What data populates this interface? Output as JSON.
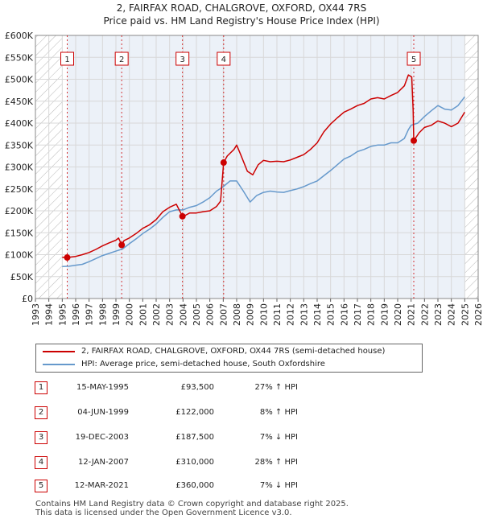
{
  "title_line1": "2, FAIRFAX ROAD, CHALGROVE, OXFORD, OX44 7RS",
  "title_line2": "Price paid vs. HM Land Registry's House Price Index (HPI)",
  "colors": {
    "property": "#cc0000",
    "hpi": "#6699cc",
    "marker_box": "#cc0000",
    "shade": "#dde6f3"
  },
  "chart_data": {
    "type": "line",
    "ylim": [
      0,
      600000
    ],
    "xlim": [
      1993,
      2026
    ],
    "y_ticks": [
      {
        "value": 0,
        "label": "£0"
      },
      {
        "value": 50000,
        "label": "£50K"
      },
      {
        "value": 100000,
        "label": "£100K"
      },
      {
        "value": 150000,
        "label": "£150K"
      },
      {
        "value": 200000,
        "label": "£200K"
      },
      {
        "value": 250000,
        "label": "£250K"
      },
      {
        "value": 300000,
        "label": "£300K"
      },
      {
        "value": 350000,
        "label": "£350K"
      },
      {
        "value": 400000,
        "label": "£400K"
      },
      {
        "value": 450000,
        "label": "£450K"
      },
      {
        "value": 500000,
        "label": "£500K"
      },
      {
        "value": 550000,
        "label": "£550K"
      },
      {
        "value": 600000,
        "label": "£600K"
      }
    ],
    "x_ticks": [
      "1993",
      "1994",
      "1995",
      "1996",
      "1997",
      "1998",
      "1999",
      "2000",
      "2001",
      "2002",
      "2003",
      "2004",
      "2005",
      "2006",
      "2007",
      "2008",
      "2009",
      "2010",
      "2011",
      "2012",
      "2013",
      "2014",
      "2015",
      "2016",
      "2017",
      "2018",
      "2019",
      "2020",
      "2021",
      "2022",
      "2023",
      "2024",
      "2025",
      "2026"
    ],
    "shaded_before": 1995.0,
    "shaded_after": 2025.0,
    "series": [
      {
        "name": "2, FAIRFAX ROAD, CHALGROVE, OXFORD, OX44 7RS (semi-detached house)",
        "color": "#cc0000",
        "points": [
          [
            1995.0,
            94000
          ],
          [
            1995.37,
            93500
          ],
          [
            1996.0,
            96000
          ],
          [
            1996.5,
            100000
          ],
          [
            1997.0,
            105000
          ],
          [
            1997.5,
            112000
          ],
          [
            1998.0,
            120000
          ],
          [
            1998.5,
            127000
          ],
          [
            1999.0,
            133000
          ],
          [
            1999.2,
            138000
          ],
          [
            1999.43,
            122000
          ],
          [
            1999.6,
            132000
          ],
          [
            2000.0,
            138000
          ],
          [
            2000.5,
            148000
          ],
          [
            2001.0,
            160000
          ],
          [
            2001.5,
            168000
          ],
          [
            2002.0,
            180000
          ],
          [
            2002.5,
            198000
          ],
          [
            2003.0,
            208000
          ],
          [
            2003.5,
            215000
          ],
          [
            2003.96,
            187500
          ],
          [
            2004.2,
            190000
          ],
          [
            2004.5,
            195000
          ],
          [
            2005.0,
            195000
          ],
          [
            2005.5,
            198000
          ],
          [
            2006.0,
            200000
          ],
          [
            2006.5,
            210000
          ],
          [
            2006.8,
            222000
          ],
          [
            2007.03,
            310000
          ],
          [
            2007.3,
            325000
          ],
          [
            2007.8,
            340000
          ],
          [
            2008.0,
            350000
          ],
          [
            2008.3,
            328000
          ],
          [
            2008.8,
            290000
          ],
          [
            2009.2,
            282000
          ],
          [
            2009.6,
            305000
          ],
          [
            2010.0,
            315000
          ],
          [
            2010.5,
            312000
          ],
          [
            2011.0,
            313000
          ],
          [
            2011.5,
            312000
          ],
          [
            2012.0,
            316000
          ],
          [
            2012.5,
            322000
          ],
          [
            2013.0,
            328000
          ],
          [
            2013.5,
            340000
          ],
          [
            2014.0,
            355000
          ],
          [
            2014.5,
            380000
          ],
          [
            2015.0,
            398000
          ],
          [
            2015.5,
            412000
          ],
          [
            2016.0,
            425000
          ],
          [
            2016.5,
            432000
          ],
          [
            2017.0,
            440000
          ],
          [
            2017.5,
            445000
          ],
          [
            2018.0,
            455000
          ],
          [
            2018.5,
            458000
          ],
          [
            2019.0,
            455000
          ],
          [
            2019.5,
            463000
          ],
          [
            2020.0,
            470000
          ],
          [
            2020.5,
            485000
          ],
          [
            2020.8,
            510000
          ],
          [
            2021.05,
            505000
          ],
          [
            2021.15,
            430000
          ],
          [
            2021.2,
            360000
          ],
          [
            2021.6,
            378000
          ],
          [
            2022.0,
            390000
          ],
          [
            2022.5,
            395000
          ],
          [
            2023.0,
            405000
          ],
          [
            2023.5,
            400000
          ],
          [
            2024.0,
            392000
          ],
          [
            2024.5,
            400000
          ],
          [
            2025.0,
            425000
          ]
        ]
      },
      {
        "name": "HPI: Average price, semi-detached house, South Oxfordshire",
        "color": "#6699cc",
        "points": [
          [
            1995.0,
            73000
          ],
          [
            1995.5,
            73500
          ],
          [
            1996.0,
            76000
          ],
          [
            1996.5,
            78000
          ],
          [
            1997.0,
            84000
          ],
          [
            1997.5,
            91000
          ],
          [
            1998.0,
            98000
          ],
          [
            1998.5,
            103000
          ],
          [
            1999.0,
            108000
          ],
          [
            1999.5,
            113000
          ],
          [
            2000.0,
            125000
          ],
          [
            2000.5,
            136000
          ],
          [
            2001.0,
            148000
          ],
          [
            2001.5,
            158000
          ],
          [
            2002.0,
            170000
          ],
          [
            2002.5,
            185000
          ],
          [
            2003.0,
            198000
          ],
          [
            2003.5,
            202000
          ],
          [
            2004.0,
            202000
          ],
          [
            2004.5,
            208000
          ],
          [
            2005.0,
            212000
          ],
          [
            2005.5,
            220000
          ],
          [
            2006.0,
            230000
          ],
          [
            2006.5,
            245000
          ],
          [
            2007.0,
            255000
          ],
          [
            2007.5,
            268000
          ],
          [
            2008.0,
            268000
          ],
          [
            2008.5,
            245000
          ],
          [
            2009.0,
            220000
          ],
          [
            2009.5,
            235000
          ],
          [
            2010.0,
            242000
          ],
          [
            2010.5,
            245000
          ],
          [
            2011.0,
            243000
          ],
          [
            2011.5,
            242000
          ],
          [
            2012.0,
            246000
          ],
          [
            2012.5,
            250000
          ],
          [
            2013.0,
            255000
          ],
          [
            2013.5,
            262000
          ],
          [
            2014.0,
            268000
          ],
          [
            2014.5,
            280000
          ],
          [
            2015.0,
            292000
          ],
          [
            2015.5,
            305000
          ],
          [
            2016.0,
            318000
          ],
          [
            2016.5,
            325000
          ],
          [
            2017.0,
            335000
          ],
          [
            2017.5,
            340000
          ],
          [
            2018.0,
            347000
          ],
          [
            2018.5,
            350000
          ],
          [
            2019.0,
            350000
          ],
          [
            2019.5,
            355000
          ],
          [
            2020.0,
            355000
          ],
          [
            2020.5,
            365000
          ],
          [
            2020.8,
            385000
          ],
          [
            2021.0,
            395000
          ],
          [
            2021.5,
            400000
          ],
          [
            2022.0,
            415000
          ],
          [
            2022.5,
            428000
          ],
          [
            2023.0,
            440000
          ],
          [
            2023.5,
            432000
          ],
          [
            2024.0,
            430000
          ],
          [
            2024.5,
            440000
          ],
          [
            2025.0,
            460000
          ]
        ]
      }
    ],
    "sales": [
      {
        "label": "1",
        "x": 1995.37,
        "y": 93500
      },
      {
        "label": "2",
        "x": 1999.43,
        "y": 122000
      },
      {
        "label": "3",
        "x": 2003.96,
        "y": 187500
      },
      {
        "label": "4",
        "x": 2007.03,
        "y": 310000
      },
      {
        "label": "5",
        "x": 2021.2,
        "y": 360000
      }
    ]
  },
  "legend": {
    "property": "2, FAIRFAX ROAD, CHALGROVE, OXFORD, OX44 7RS (semi-detached house)",
    "hpi": "HPI: Average price, semi-detached house, South Oxfordshire"
  },
  "transactions": [
    {
      "num": "1",
      "date": "15-MAY-1995",
      "price": "£93,500",
      "hpi": "27% ↑ HPI"
    },
    {
      "num": "2",
      "date": "04-JUN-1999",
      "price": "£122,000",
      "hpi": "8% ↑ HPI"
    },
    {
      "num": "3",
      "date": "19-DEC-2003",
      "price": "£187,500",
      "hpi": "7% ↓ HPI"
    },
    {
      "num": "4",
      "date": "12-JAN-2007",
      "price": "£310,000",
      "hpi": "28% ↑ HPI"
    },
    {
      "num": "5",
      "date": "12-MAR-2021",
      "price": "£360,000",
      "hpi": "7% ↓ HPI"
    }
  ],
  "footer": {
    "line1": "Contains HM Land Registry data © Crown copyright and database right 2025.",
    "line2": "This data is licensed under the Open Government Licence v3.0."
  }
}
